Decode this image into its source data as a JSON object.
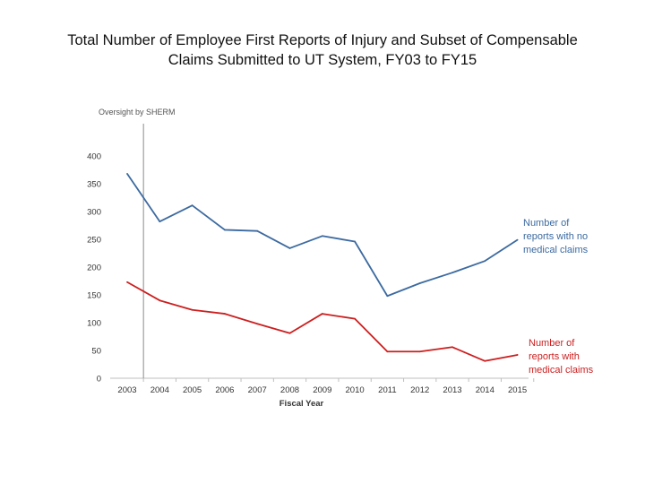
{
  "title_line1": "Total Number of Employee First Reports of Injury and Subset of Compensable",
  "title_line2": "Claims Submitted to UT System, FY03 to FY15",
  "chart_data": {
    "type": "line",
    "title": "Total Number of Employee First Reports of Injury and Subset of Compensable Claims Submitted to UT System, FY03 to FY15",
    "xlabel": "Fiscal Year",
    "ylabel": "",
    "categories": [
      "2003",
      "2004",
      "2005",
      "2006",
      "2007",
      "2008",
      "2009",
      "2010",
      "2011",
      "2012",
      "2013",
      "2014",
      "2015"
    ],
    "ylim": [
      0,
      400
    ],
    "yticks": [
      0,
      50,
      100,
      150,
      200,
      250,
      300,
      350,
      400
    ],
    "grid": false,
    "series": [
      {
        "name": "Number of reports with no medical claims",
        "color": "#3c6aa0",
        "values": [
          368,
          282,
          311,
          267,
          265,
          234,
          256,
          246,
          148,
          171,
          190,
          211,
          249
        ]
      },
      {
        "name": "Number of reports with medical claims",
        "color": "#cc1f1f",
        "values": [
          173,
          140,
          123,
          116,
          98,
          81,
          116,
          107,
          48,
          48,
          56,
          31,
          42
        ]
      }
    ],
    "annotation": {
      "label": "Oversight by SHERM",
      "at_category_index": 0.5
    }
  }
}
